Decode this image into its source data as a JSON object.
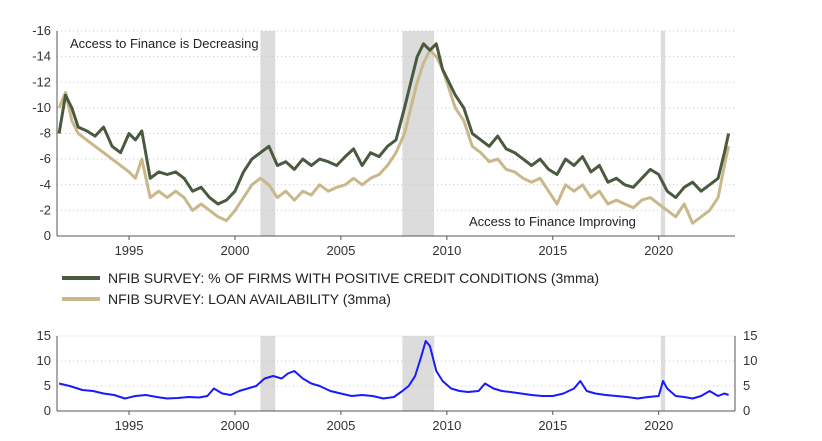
{
  "chart_data": [
    {
      "type": "line",
      "title": "",
      "xlabel": "",
      "ylabel": "",
      "ylim": [
        0,
        -16
      ],
      "y_inverted": true,
      "xlim": [
        1991.6,
        2023.6
      ],
      "grid": true,
      "x_ticks": [
        1995,
        2000,
        2005,
        2010,
        2015,
        2020
      ],
      "y_ticks": [
        -16,
        -14,
        -12,
        -10,
        -8,
        -6,
        -4,
        -2,
        0
      ],
      "legend_position": "bottom",
      "recessions": [
        [
          2001.2,
          2001.9
        ],
        [
          2007.9,
          2009.4
        ],
        [
          2020.1,
          2020.3
        ]
      ],
      "annotations": [
        "Access to Finance is Decreasing",
        "Access to Finance Improving"
      ],
      "series": [
        {
          "name": "NFIB SURVEY: % OF FIRMS WITH POSITIVE CREDIT CONDITIONS (3mma)",
          "color": "#4a5a40",
          "x": [
            1991.7,
            1992.0,
            1992.3,
            1992.6,
            1993.0,
            1993.4,
            1993.8,
            1994.2,
            1994.6,
            1995.0,
            1995.3,
            1995.6,
            1996.0,
            1996.4,
            1996.8,
            1997.2,
            1997.6,
            1998.0,
            1998.4,
            1998.8,
            1999.2,
            1999.6,
            2000.0,
            2000.4,
            2000.8,
            2001.2,
            2001.6,
            2002.0,
            2002.4,
            2002.8,
            2003.2,
            2003.6,
            2004.0,
            2004.4,
            2004.8,
            2005.2,
            2005.6,
            2006.0,
            2006.4,
            2006.8,
            2007.2,
            2007.6,
            2008.0,
            2008.3,
            2008.6,
            2008.9,
            2009.2,
            2009.5,
            2009.8,
            2010.1,
            2010.4,
            2010.8,
            2011.2,
            2011.6,
            2012.0,
            2012.4,
            2012.8,
            2013.2,
            2013.6,
            2014.0,
            2014.4,
            2014.8,
            2015.2,
            2015.6,
            2016.0,
            2016.4,
            2016.8,
            2017.2,
            2017.6,
            2018.0,
            2018.4,
            2018.8,
            2019.2,
            2019.6,
            2020.0,
            2020.4,
            2020.8,
            2021.2,
            2021.6,
            2022.0,
            2022.4,
            2022.8,
            2023.1,
            2023.3
          ],
          "values": [
            -8.0,
            -11.0,
            -10.0,
            -8.5,
            -8.2,
            -7.8,
            -8.5,
            -7.0,
            -6.5,
            -8.0,
            -7.5,
            -8.2,
            -4.5,
            -5.0,
            -4.8,
            -5.0,
            -4.5,
            -3.5,
            -3.8,
            -3.0,
            -2.5,
            -2.8,
            -3.5,
            -5.0,
            -6.0,
            -6.5,
            -7.0,
            -5.5,
            -5.8,
            -5.2,
            -6.0,
            -5.5,
            -6.0,
            -5.8,
            -5.5,
            -6.2,
            -6.8,
            -5.5,
            -6.5,
            -6.2,
            -7.0,
            -7.5,
            -10.0,
            -12.0,
            -14.0,
            -15.0,
            -14.5,
            -15.0,
            -13.0,
            -12.0,
            -11.0,
            -10.0,
            -8.0,
            -7.5,
            -7.0,
            -7.8,
            -6.8,
            -6.5,
            -6.0,
            -5.5,
            -6.0,
            -5.2,
            -4.8,
            -6.0,
            -5.5,
            -6.2,
            -5.0,
            -5.5,
            -4.2,
            -4.5,
            -4.0,
            -3.8,
            -4.5,
            -5.2,
            -4.8,
            -3.5,
            -3.0,
            -3.8,
            -4.2,
            -3.5,
            -4.0,
            -4.5,
            -6.5,
            -8.0
          ]
        },
        {
          "name": "NFIB SURVEY: LOAN AVAILABILITY (3mma)",
          "color": "#c8b88a",
          "x": [
            1991.7,
            1992.0,
            1992.3,
            1992.6,
            1993.0,
            1993.4,
            1993.8,
            1994.2,
            1994.6,
            1995.0,
            1995.3,
            1995.6,
            1996.0,
            1996.4,
            1996.8,
            1997.2,
            1997.6,
            1998.0,
            1998.4,
            1998.8,
            1999.2,
            1999.6,
            2000.0,
            2000.4,
            2000.8,
            2001.2,
            2001.6,
            2002.0,
            2002.4,
            2002.8,
            2003.2,
            2003.6,
            2004.0,
            2004.4,
            2004.8,
            2005.2,
            2005.6,
            2006.0,
            2006.4,
            2006.8,
            2007.2,
            2007.6,
            2008.0,
            2008.3,
            2008.6,
            2008.9,
            2009.2,
            2009.5,
            2009.8,
            2010.1,
            2010.4,
            2010.8,
            2011.2,
            2011.6,
            2012.0,
            2012.4,
            2012.8,
            2013.2,
            2013.6,
            2014.0,
            2014.4,
            2014.8,
            2015.2,
            2015.6,
            2016.0,
            2016.4,
            2016.8,
            2017.2,
            2017.6,
            2018.0,
            2018.4,
            2018.8,
            2019.2,
            2019.6,
            2020.0,
            2020.4,
            2020.8,
            2021.2,
            2021.6,
            2022.0,
            2022.4,
            2022.8,
            2023.1,
            2023.3
          ],
          "values": [
            -10.0,
            -11.2,
            -9.0,
            -8.0,
            -7.5,
            -7.0,
            -6.5,
            -6.0,
            -5.5,
            -5.0,
            -4.5,
            -6.0,
            -3.0,
            -3.5,
            -3.0,
            -3.5,
            -3.0,
            -2.0,
            -2.5,
            -2.0,
            -1.5,
            -1.2,
            -2.0,
            -3.0,
            -4.0,
            -4.5,
            -4.0,
            -3.0,
            -3.5,
            -2.8,
            -3.5,
            -3.2,
            -4.0,
            -3.5,
            -3.8,
            -4.0,
            -4.5,
            -4.0,
            -4.5,
            -4.8,
            -5.5,
            -6.5,
            -8.0,
            -10.0,
            -12.0,
            -13.5,
            -14.5,
            -14.0,
            -13.0,
            -11.5,
            -10.0,
            -9.0,
            -7.0,
            -6.5,
            -5.8,
            -6.0,
            -5.2,
            -5.0,
            -4.5,
            -4.2,
            -4.5,
            -3.5,
            -2.5,
            -4.0,
            -3.5,
            -4.0,
            -3.0,
            -3.5,
            -2.5,
            -2.8,
            -2.5,
            -2.2,
            -2.8,
            -3.0,
            -2.5,
            -2.0,
            -1.5,
            -2.5,
            -1.0,
            -1.5,
            -2.0,
            -3.0,
            -5.5,
            -7.0
          ]
        }
      ]
    },
    {
      "type": "line",
      "title": "",
      "xlabel": "",
      "ylabel": "",
      "ylim": [
        0,
        15
      ],
      "xlim": [
        1991.6,
        2023.6
      ],
      "grid": true,
      "x_ticks": [
        1995,
        2000,
        2005,
        2010,
        2015,
        2020
      ],
      "y_ticks": [
        0,
        5,
        10,
        15
      ],
      "recessions": [
        [
          2001.2,
          2001.9
        ],
        [
          2007.9,
          2009.4
        ],
        [
          2020.1,
          2020.3
        ]
      ],
      "series": [
        {
          "color": "#1a1aff",
          "x": [
            1991.7,
            1992.2,
            1992.8,
            1993.3,
            1993.8,
            1994.3,
            1994.8,
            1995.3,
            1995.8,
            1996.3,
            1996.8,
            1997.3,
            1997.8,
            1998.3,
            1998.7,
            1999.0,
            1999.4,
            1999.8,
            2000.2,
            2000.6,
            2001.0,
            2001.4,
            2001.8,
            2002.2,
            2002.5,
            2002.8,
            2003.2,
            2003.6,
            2004.0,
            2004.5,
            2005.0,
            2005.5,
            2006.0,
            2006.5,
            2007.0,
            2007.5,
            2007.9,
            2008.2,
            2008.5,
            2008.8,
            2009.0,
            2009.2,
            2009.5,
            2009.8,
            2010.2,
            2010.6,
            2011.0,
            2011.5,
            2011.8,
            2012.2,
            2012.6,
            2013.0,
            2013.5,
            2014.0,
            2014.5,
            2015.0,
            2015.5,
            2016.0,
            2016.3,
            2016.6,
            2017.0,
            2017.5,
            2018.0,
            2018.5,
            2019.0,
            2019.5,
            2020.0,
            2020.2,
            2020.4,
            2020.8,
            2021.2,
            2021.6,
            2022.0,
            2022.4,
            2022.8,
            2023.1,
            2023.3
          ],
          "values": [
            5.5,
            5.0,
            4.2,
            4.0,
            3.5,
            3.2,
            2.5,
            3.0,
            3.2,
            2.8,
            2.5,
            2.6,
            2.8,
            2.7,
            3.0,
            4.5,
            3.5,
            3.2,
            4.0,
            4.5,
            5.0,
            6.5,
            7.0,
            6.5,
            7.5,
            8.0,
            6.5,
            5.5,
            5.0,
            4.0,
            3.5,
            3.0,
            3.2,
            3.0,
            2.5,
            2.8,
            4.0,
            5.0,
            7.0,
            11.0,
            14.0,
            13.0,
            8.0,
            6.0,
            4.5,
            4.0,
            3.8,
            4.0,
            5.5,
            4.5,
            4.0,
            3.8,
            3.5,
            3.2,
            3.0,
            3.0,
            3.5,
            4.5,
            6.0,
            4.0,
            3.5,
            3.2,
            3.0,
            2.8,
            2.5,
            2.8,
            3.0,
            6.0,
            4.5,
            3.0,
            2.8,
            2.5,
            3.0,
            4.0,
            3.0,
            3.5,
            3.2
          ]
        }
      ]
    }
  ]
}
